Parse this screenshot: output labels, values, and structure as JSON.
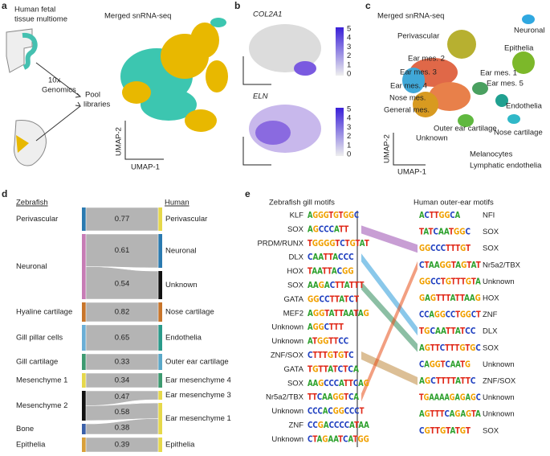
{
  "panel_a": {
    "letter": "a",
    "title_lines": [
      "Human fetal",
      "tissue multiome"
    ],
    "genomics_lines": [
      "10x",
      "Genomics"
    ],
    "pool_lines": [
      "Pool",
      "libraries"
    ],
    "umap_title": "Merged snRNA-seq",
    "y_axis": "UMAP-2",
    "x_axis": "UMAP-1"
  },
  "panel_b": {
    "letter": "b",
    "genes": [
      "COL2A1",
      "ELN"
    ],
    "gene_color": "#3a2fd0",
    "colorbar_ticks": [
      5,
      4,
      3,
      2,
      1,
      0
    ]
  },
  "panel_c": {
    "letter": "c",
    "title": "Merged snRNA-seq",
    "y_axis": "UMAP-2",
    "x_axis": "UMAP-1",
    "labels": [
      "Neuronal",
      "Perivascular",
      "Epithelia",
      "Ear mes. 2",
      "Ear mes. 3",
      "Ear mes. 1",
      "Ear mes. 4",
      "Ear mes. 5",
      "Nose mes.",
      "General mes.",
      "Endothelia",
      "Outer ear cartilage",
      "Nose cartilage",
      "Unknown",
      "Melanocytes",
      "Lymphatic endothelia"
    ]
  },
  "panel_d": {
    "letter": "d",
    "left_header": "Zebrafish",
    "right_header": "Human",
    "left": [
      {
        "label": "Perivascular",
        "color": "#2a7ab0"
      },
      {
        "label": "Neuronal",
        "color": "#c77cb5"
      },
      {
        "label": "Hyaline cartilage",
        "color": "#c8752a"
      },
      {
        "label": "Gill pillar cells",
        "color": "#6aaed6"
      },
      {
        "label": "Gill cartilage",
        "color": "#3d9a70"
      },
      {
        "label": "Mesenchyme 1",
        "color": "#e6d84a"
      },
      {
        "label": "Mesenchyme 2",
        "color": "#111111"
      },
      {
        "label": "Bone",
        "color": "#3a5fa8"
      },
      {
        "label": "Epithelia",
        "color": "#d9a03a"
      }
    ],
    "right": [
      {
        "label": "Perivascular",
        "color": "#e6d84a"
      },
      {
        "label": "Neuronal",
        "color": "#2a7ab0"
      },
      {
        "label": "Unknown",
        "color": "#111111"
      },
      {
        "label": "Nose cartilage",
        "color": "#c8752a"
      },
      {
        "label": "Endothelia",
        "color": "#2a9a8a"
      },
      {
        "label": "Outer ear cartilage",
        "color": "#5aa8c8"
      },
      {
        "label": "Ear mesenchyme 4",
        "color": "#3d9a70"
      },
      {
        "label": "Ear mesenchyme 3",
        "color": "#e6d84a"
      },
      {
        "label": "Ear mesenchyme 1",
        "color": "#e6d84a"
      },
      {
        "label": "Epithelia",
        "color": "#e6d84a"
      }
    ],
    "scores": [
      0.77,
      0.61,
      0.54,
      0.82,
      0.65,
      0.33,
      0.34,
      0.47,
      0.58,
      0.38,
      0.39
    ]
  },
  "panel_e": {
    "letter": "e",
    "left_title": "Zebrafish gill motifs",
    "right_title": "Human outer-ear motifs",
    "left": [
      {
        "label": "KLF",
        "sequence": "AGGGTGTGGC",
        "color": "#888888"
      },
      {
        "label": "SOX",
        "sequence": "AGCCCATT",
        "color": "#9b4fb0"
      },
      {
        "label": "PRDM/RUNX",
        "sequence": "TGGGGTCTGTAT",
        "color": "#888888"
      },
      {
        "label": "DLX",
        "sequence": "CAATTACCC",
        "color": "#2a9ad8"
      },
      {
        "label": "HOX",
        "sequence": "TAATTACGG",
        "color": "#888888"
      },
      {
        "label": "SOX",
        "sequence": "AAGACTTATTT",
        "color": "#2e8a5a"
      },
      {
        "label": "GATA",
        "sequence": "GGCCTTATCT",
        "color": "#888888"
      },
      {
        "label": "MEF2",
        "sequence": "AGGTATTAATAG",
        "color": "#888888"
      },
      {
        "label": "Unknown",
        "sequence": "AGGCTTT",
        "color": "#888888"
      },
      {
        "label": "Unknown",
        "sequence": "ATGGTTCC",
        "color": "#888888"
      },
      {
        "label": "ZNF/SOX",
        "sequence": "CTTTGTGTC",
        "color": "#c08a40"
      },
      {
        "label": "GATA",
        "sequence": "TGTTATCTCA",
        "color": "#888888"
      },
      {
        "label": "SOX",
        "sequence": "AAGCCCATTCAG",
        "color": "#888888"
      },
      {
        "label": "Nr5a2/TBX",
        "sequence": "TTCAAGGTCA",
        "color": "#e8501a"
      },
      {
        "label": "Unknown",
        "sequence": "CCCACGGCCCT",
        "color": "#888888"
      },
      {
        "label": "ZNF",
        "sequence": "CCGACCCCATAA",
        "color": "#888888"
      },
      {
        "label": "Unknown",
        "sequence": "CTAGAATCATGG",
        "color": "#888888"
      }
    ],
    "right": [
      {
        "label": "NFI",
        "sequence": "ACTTGGCA",
        "color": "#888888"
      },
      {
        "label": "SOX",
        "sequence": "TATCAATGGC",
        "color": "#888888"
      },
      {
        "label": "SOX",
        "sequence": "GGCCCTTTGT",
        "color": "#9b4fb0"
      },
      {
        "label": "Nr5a2/TBX",
        "sequence": "CTAAGGTAGTAT",
        "color": "#e8501a"
      },
      {
        "label": "Unknown",
        "sequence": "GGCCTGTTTGTA",
        "color": "#888888"
      },
      {
        "label": "HOX",
        "sequence": "GAGTTTATTAAG",
        "color": "#888888"
      },
      {
        "label": "ZNF",
        "sequence": "CCAGGCCTGGCT",
        "color": "#888888"
      },
      {
        "label": "DLX",
        "sequence": "TGCAATTATCC",
        "color": "#2a9ad8"
      },
      {
        "label": "SOX",
        "sequence": "AGTTCTTTGTGC",
        "color": "#2e8a5a"
      },
      {
        "label": "Unknown",
        "sequence": "CAGGTCAATG",
        "color": "#888888"
      },
      {
        "label": "ZNF/SOX",
        "sequence": "AGCTTTTATTC",
        "color": "#c08a40"
      },
      {
        "label": "Unknown",
        "sequence": "TGAAAAGAGAGC",
        "color": "#888888"
      },
      {
        "label": "Unknown",
        "sequence": "AGTTTCAGAGTA",
        "color": "#888888"
      },
      {
        "label": "SOX",
        "sequence": "CGTTGTATGT",
        "color": "#888888"
      }
    ]
  }
}
